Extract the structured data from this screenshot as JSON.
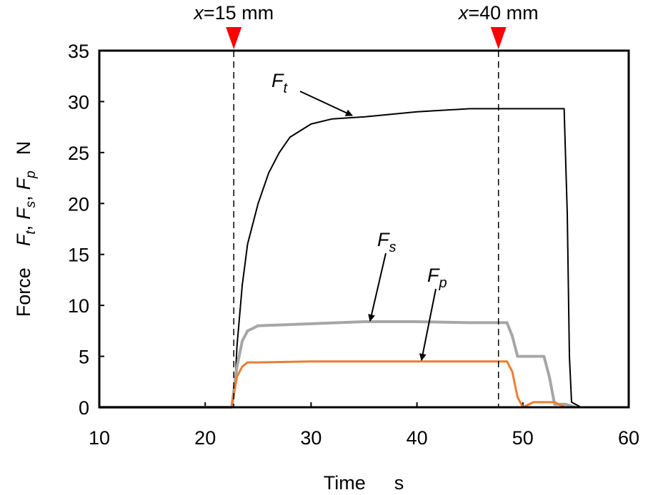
{
  "chart_data": {
    "type": "line",
    "x_label": {
      "text": "Time",
      "unit": "s"
    },
    "y_label": {
      "prefix": "Force",
      "separator": ",",
      "unit": "N"
    },
    "xlim": [
      10,
      60
    ],
    "xticks": [
      10,
      20,
      30,
      40,
      50,
      60
    ],
    "ylim": [
      0,
      35
    ],
    "yticks": [
      0,
      5,
      10,
      15,
      20,
      25,
      30,
      35
    ],
    "markers": [
      {
        "x": 22.7,
        "variable": "x",
        "label": "=15 mm",
        "color": "#ff0000"
      },
      {
        "x": 47.7,
        "variable": "x",
        "label": "=40 mm",
        "color": "#ff0000"
      }
    ],
    "series": [
      {
        "symbol": "F",
        "subscript": "t",
        "color": "#000000",
        "width": 2,
        "x": [
          10,
          22.5,
          22.8,
          23,
          23.5,
          24,
          25,
          26,
          27,
          28,
          30,
          32,
          35,
          40,
          45,
          50,
          53.9,
          54.2,
          54.4,
          54.6,
          55.5
        ],
        "values": [
          0,
          0,
          2,
          6,
          12,
          16,
          20,
          23,
          25,
          26.5,
          27.8,
          28.3,
          28.5,
          29,
          29.3,
          29.3,
          29.3,
          19,
          5,
          0.5,
          0
        ]
      },
      {
        "symbol": "F",
        "subscript": "s",
        "color": "#a6a6a6",
        "width": 4,
        "x": [
          10,
          22.5,
          23,
          23.5,
          24,
          25,
          30,
          35,
          40,
          45,
          48.5,
          49,
          49.5,
          52,
          52.5,
          53,
          54,
          55
        ],
        "values": [
          0,
          0,
          4,
          6.5,
          7.5,
          8,
          8.2,
          8.4,
          8.4,
          8.3,
          8.3,
          7,
          5,
          5,
          3,
          0.3,
          0.3,
          0
        ]
      },
      {
        "symbol": "F",
        "subscript": "p",
        "color": "#ed7d31",
        "width": 3,
        "x": [
          10,
          22.5,
          23,
          23.5,
          24,
          25,
          30,
          40,
          48.5,
          49,
          49.5,
          50,
          51,
          53,
          54,
          56.5
        ],
        "values": [
          0,
          0,
          3,
          4,
          4.4,
          4.4,
          4.5,
          4.5,
          4.5,
          3.5,
          1,
          0,
          0.5,
          0.5,
          0,
          0
        ]
      }
    ]
  }
}
